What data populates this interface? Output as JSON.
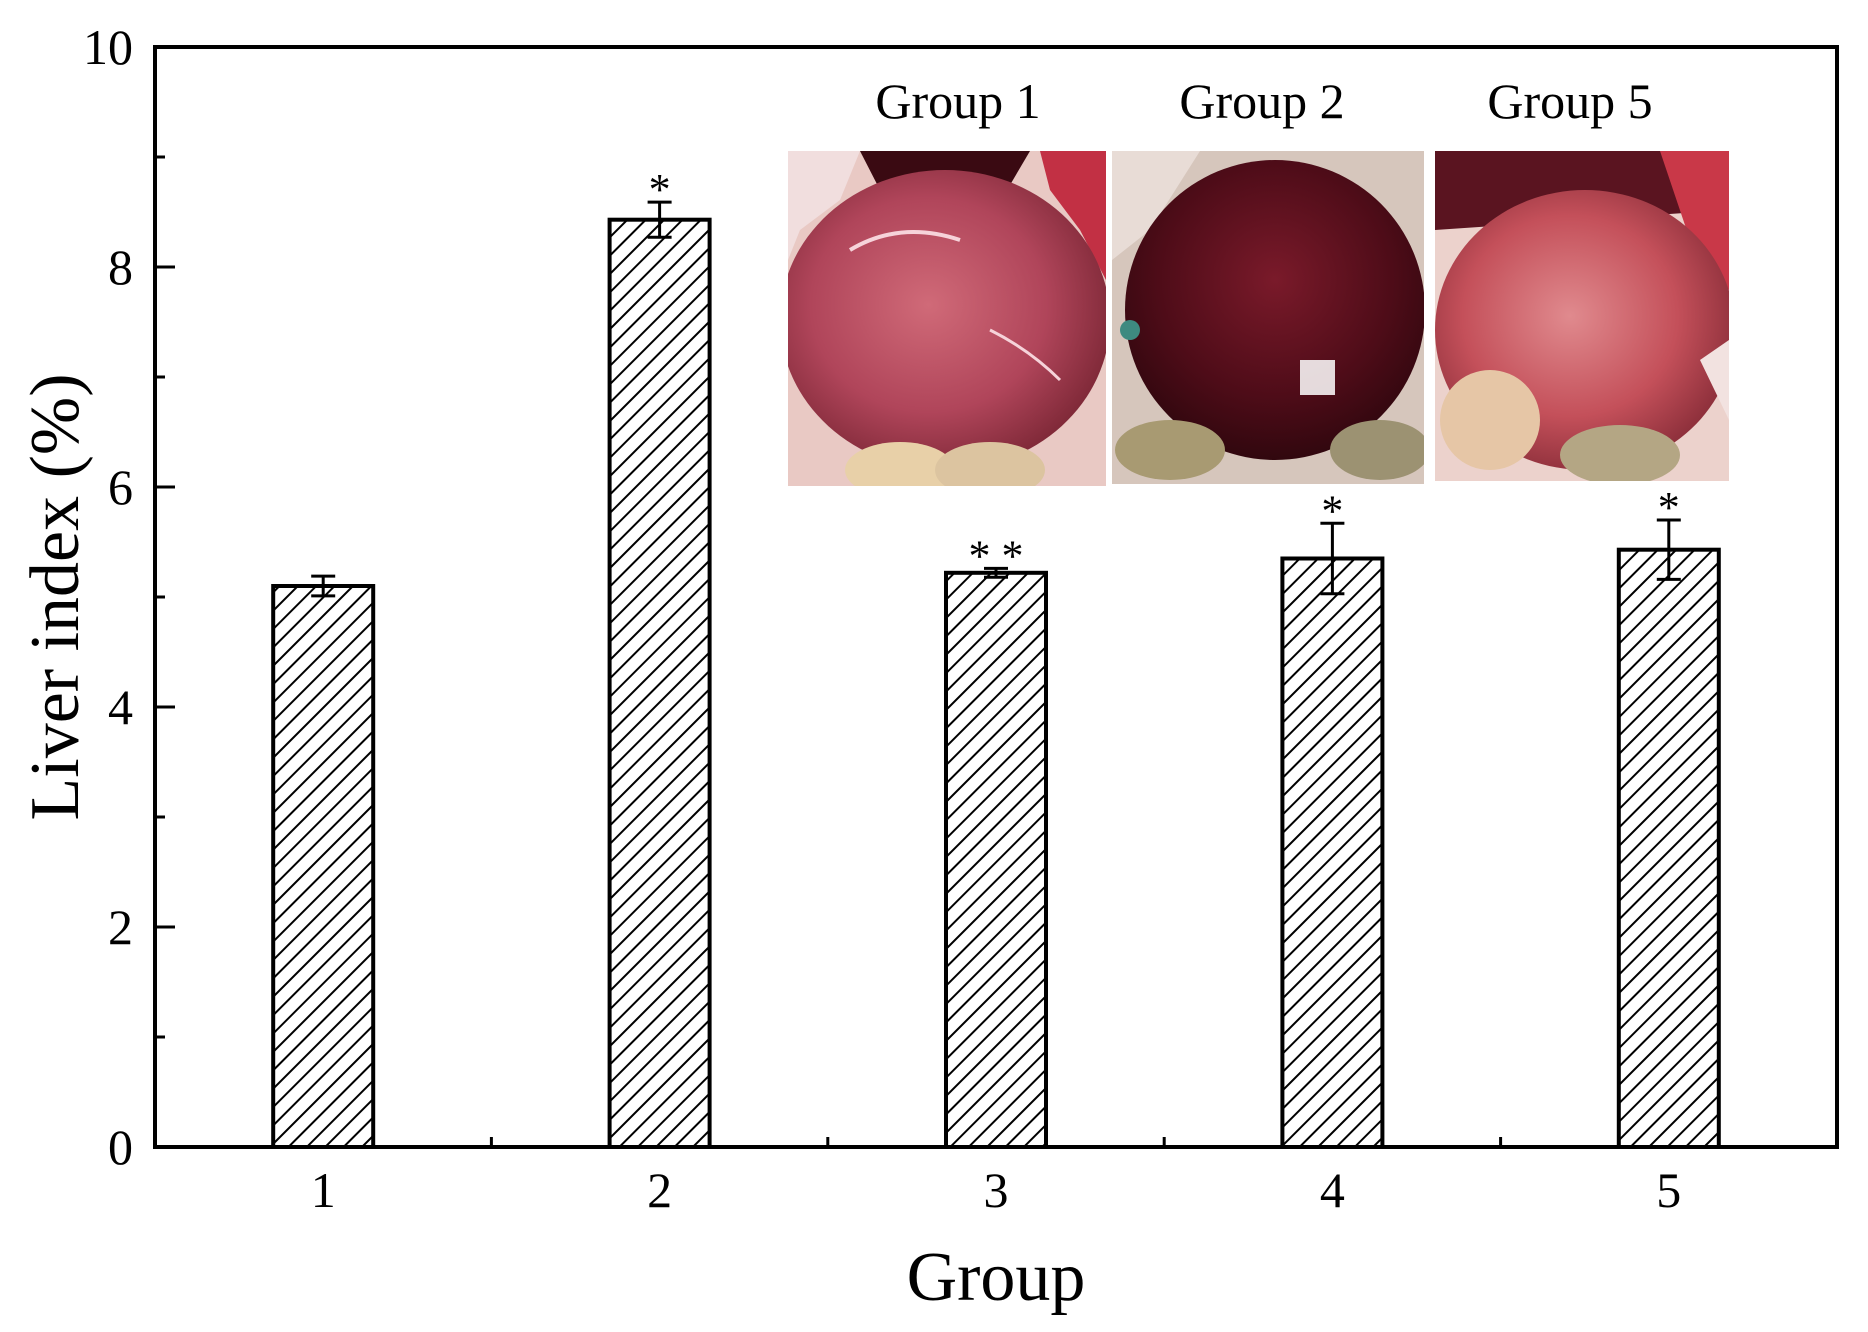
{
  "chart_data": {
    "type": "bar",
    "xlabel": "Group",
    "ylabel": "Liver index (%)",
    "ylim": [
      0,
      10
    ],
    "yticks": [
      0,
      2,
      4,
      6,
      8,
      10
    ],
    "grid": false,
    "bar_fill": "hatched",
    "categories": [
      "1",
      "2",
      "3",
      "4",
      "5"
    ],
    "values": [
      5.1,
      8.43,
      5.22,
      5.35,
      5.43
    ],
    "errors": [
      0.09,
      0.16,
      0.04,
      0.32,
      0.27
    ],
    "significance": [
      "",
      "*",
      "* *",
      "*",
      "*"
    ],
    "inset_photos": [
      {
        "label": "Group 1",
        "tone": "#b8485a"
      },
      {
        "label": "Group 2",
        "tone": "#5a0f1c"
      },
      {
        "label": "Group 5",
        "tone": "#c4505a"
      }
    ]
  },
  "colors": {
    "axis": "#000000",
    "bar_stroke": "#000000",
    "bar_fill": "#ffffff"
  }
}
